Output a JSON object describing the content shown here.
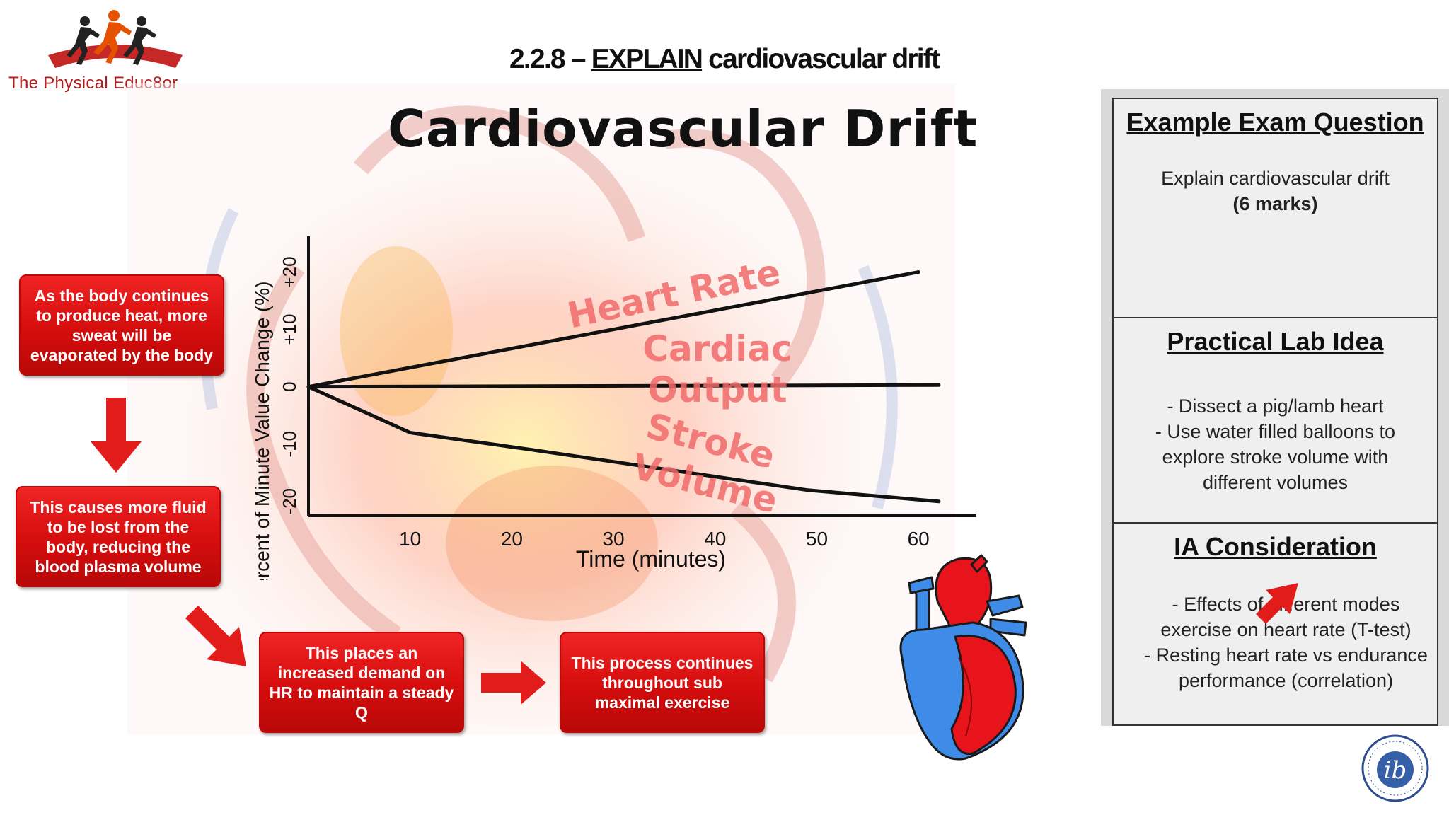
{
  "logo": {
    "text": "The Physical Educ8or"
  },
  "header": {
    "prefix": "2.2.8 – ",
    "command": "EXPLAIN",
    "topic": " cardiovascular drift"
  },
  "chart_title": "Cardiovascular Drift",
  "chart_data": {
    "type": "line",
    "xlabel": "Time (minutes)",
    "ylabel": "Percent of Minute Value Change (%)",
    "x_ticks": [
      "10",
      "20",
      "30",
      "40",
      "50",
      "60"
    ],
    "y_ticks": [
      "-20",
      "-10",
      "0",
      "+10",
      "+20"
    ],
    "xlim": [
      0,
      65
    ],
    "ylim": [
      -22,
      25
    ],
    "series": [
      {
        "name": "Heart Rate",
        "x": [
          0,
          60
        ],
        "y": [
          0,
          20
        ]
      },
      {
        "name": "Cardiac Output",
        "x": [
          0,
          62
        ],
        "y": [
          0,
          0.3
        ]
      },
      {
        "name": "Stroke Volume",
        "x": [
          0,
          10,
          22,
          49,
          62
        ],
        "y": [
          0,
          -8,
          -11,
          -18,
          -20
        ]
      }
    ],
    "series_label_color": "#f06a6a"
  },
  "flow": {
    "box1": "As the body continues to produce heat, more sweat will be evaporated by the body",
    "box2": "This causes more fluid to be lost from the body, reducing the blood plasma volume",
    "box3": "This places an increased demand on HR to maintain a steady Q",
    "box4": "This process continues throughout sub maximal exercise"
  },
  "panel": {
    "exam": {
      "title": "Example Exam Question",
      "line1": "Explain cardiovascular drift",
      "line2": "(6 marks)"
    },
    "lab": {
      "title": "Practical Lab Idea",
      "items": [
        "-      Dissect a pig/lamb heart",
        "- Use water filled balloons to explore stroke volume with different volumes"
      ]
    },
    "ia": {
      "title": "IA Consideration",
      "items": [
        "-      Effects of different modes exercise on heart rate (T-test)",
        "-      Resting heart rate vs endurance performance (correlation)"
      ]
    }
  },
  "colors": {
    "box_red": "#d50d0d",
    "heart_red": "#e8141c",
    "heart_blue": "#3f8ce8"
  }
}
